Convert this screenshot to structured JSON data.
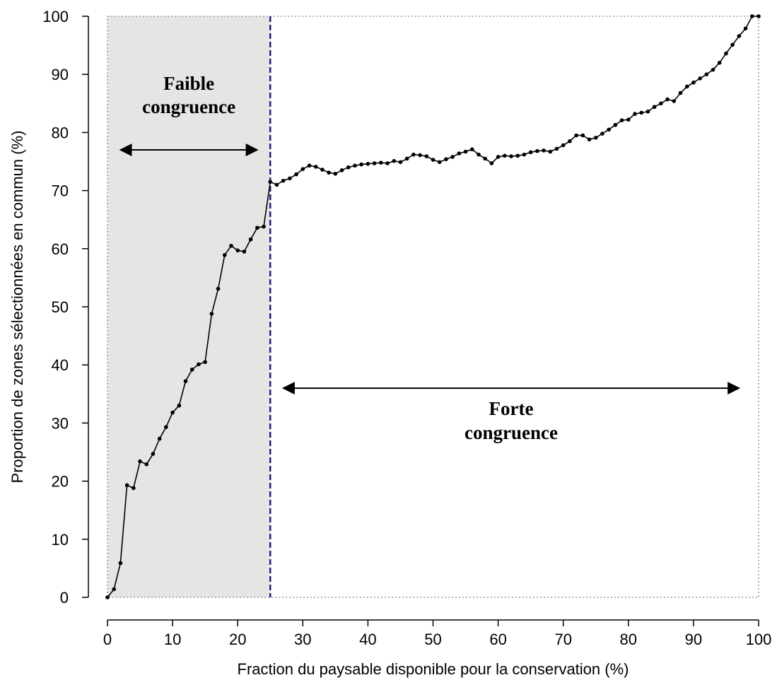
{
  "chart_data": {
    "type": "line",
    "title": "",
    "xlabel": "Fraction du paysable disponible pour la conservation (%)",
    "ylabel": "Proportion de zones sélectionnées en commun (%)",
    "xlim": [
      0,
      100
    ],
    "ylim": [
      0,
      100
    ],
    "xticks": [
      0,
      10,
      20,
      30,
      40,
      50,
      60,
      70,
      80,
      90,
      100
    ],
    "yticks": [
      0,
      10,
      20,
      30,
      40,
      50,
      60,
      70,
      80,
      90,
      100
    ],
    "grid": false,
    "legend": "none",
    "threshold_x": 25,
    "shaded_region": [
      0,
      25
    ],
    "colors": {
      "line": "#000000",
      "threshold": "#1f1f7a",
      "shade": "#e5e5e5",
      "frame": "#888888"
    },
    "annotations": [
      {
        "lines": [
          "Faible",
          "congruence"
        ],
        "arrow_from": 2,
        "arrow_to": 23,
        "arrow_y": 77
      },
      {
        "lines": [
          "Forte",
          "congruence"
        ],
        "arrow_from": 27,
        "arrow_to": 97,
        "arrow_y": 36
      }
    ],
    "x": [
      0,
      1,
      2,
      3,
      4,
      5,
      6,
      7,
      8,
      9,
      10,
      11,
      12,
      13,
      14,
      15,
      16,
      17,
      18,
      19,
      20,
      21,
      22,
      23,
      24,
      25,
      26,
      27,
      28,
      29,
      30,
      31,
      32,
      33,
      34,
      35,
      36,
      37,
      38,
      39,
      40,
      41,
      42,
      43,
      44,
      45,
      46,
      47,
      48,
      49,
      50,
      51,
      52,
      53,
      54,
      55,
      56,
      57,
      58,
      59,
      60,
      61,
      62,
      63,
      64,
      65,
      66,
      67,
      68,
      69,
      70,
      71,
      72,
      73,
      74,
      75,
      76,
      77,
      78,
      79,
      80,
      81,
      82,
      83,
      84,
      85,
      86,
      87,
      88,
      89,
      90,
      91,
      92,
      93,
      94,
      95,
      96,
      97,
      98,
      99,
      100
    ],
    "y": [
      0,
      1.4,
      5.9,
      19.3,
      18.8,
      23.4,
      22.9,
      24.7,
      27.3,
      29.3,
      31.8,
      33.0,
      37.2,
      39.2,
      40.1,
      40.5,
      48.8,
      53.1,
      58.9,
      60.5,
      59.7,
      59.5,
      61.6,
      63.6,
      63.8,
      71.5,
      71.0,
      71.7,
      72.1,
      72.8,
      73.7,
      74.3,
      74.1,
      73.6,
      73.1,
      72.9,
      73.5,
      74.0,
      74.3,
      74.5,
      74.6,
      74.7,
      74.8,
      74.7,
      75.1,
      74.9,
      75.5,
      76.2,
      76.1,
      75.9,
      75.3,
      74.9,
      75.4,
      75.8,
      76.4,
      76.7,
      77.1,
      76.2,
      75.5,
      74.7,
      75.8,
      76.0,
      75.9,
      76.0,
      76.2,
      76.6,
      76.8,
      76.9,
      76.7,
      77.2,
      77.8,
      78.5,
      79.5,
      79.5,
      78.8,
      79.1,
      79.8,
      80.5,
      81.3,
      82.1,
      82.2,
      83.2,
      83.4,
      83.6,
      84.4,
      85.0,
      85.7,
      85.4,
      86.8,
      87.9,
      88.6,
      89.3,
      90.0,
      90.8,
      92.0,
      93.6,
      95.1,
      96.6,
      97.9,
      100,
      100
    ]
  }
}
